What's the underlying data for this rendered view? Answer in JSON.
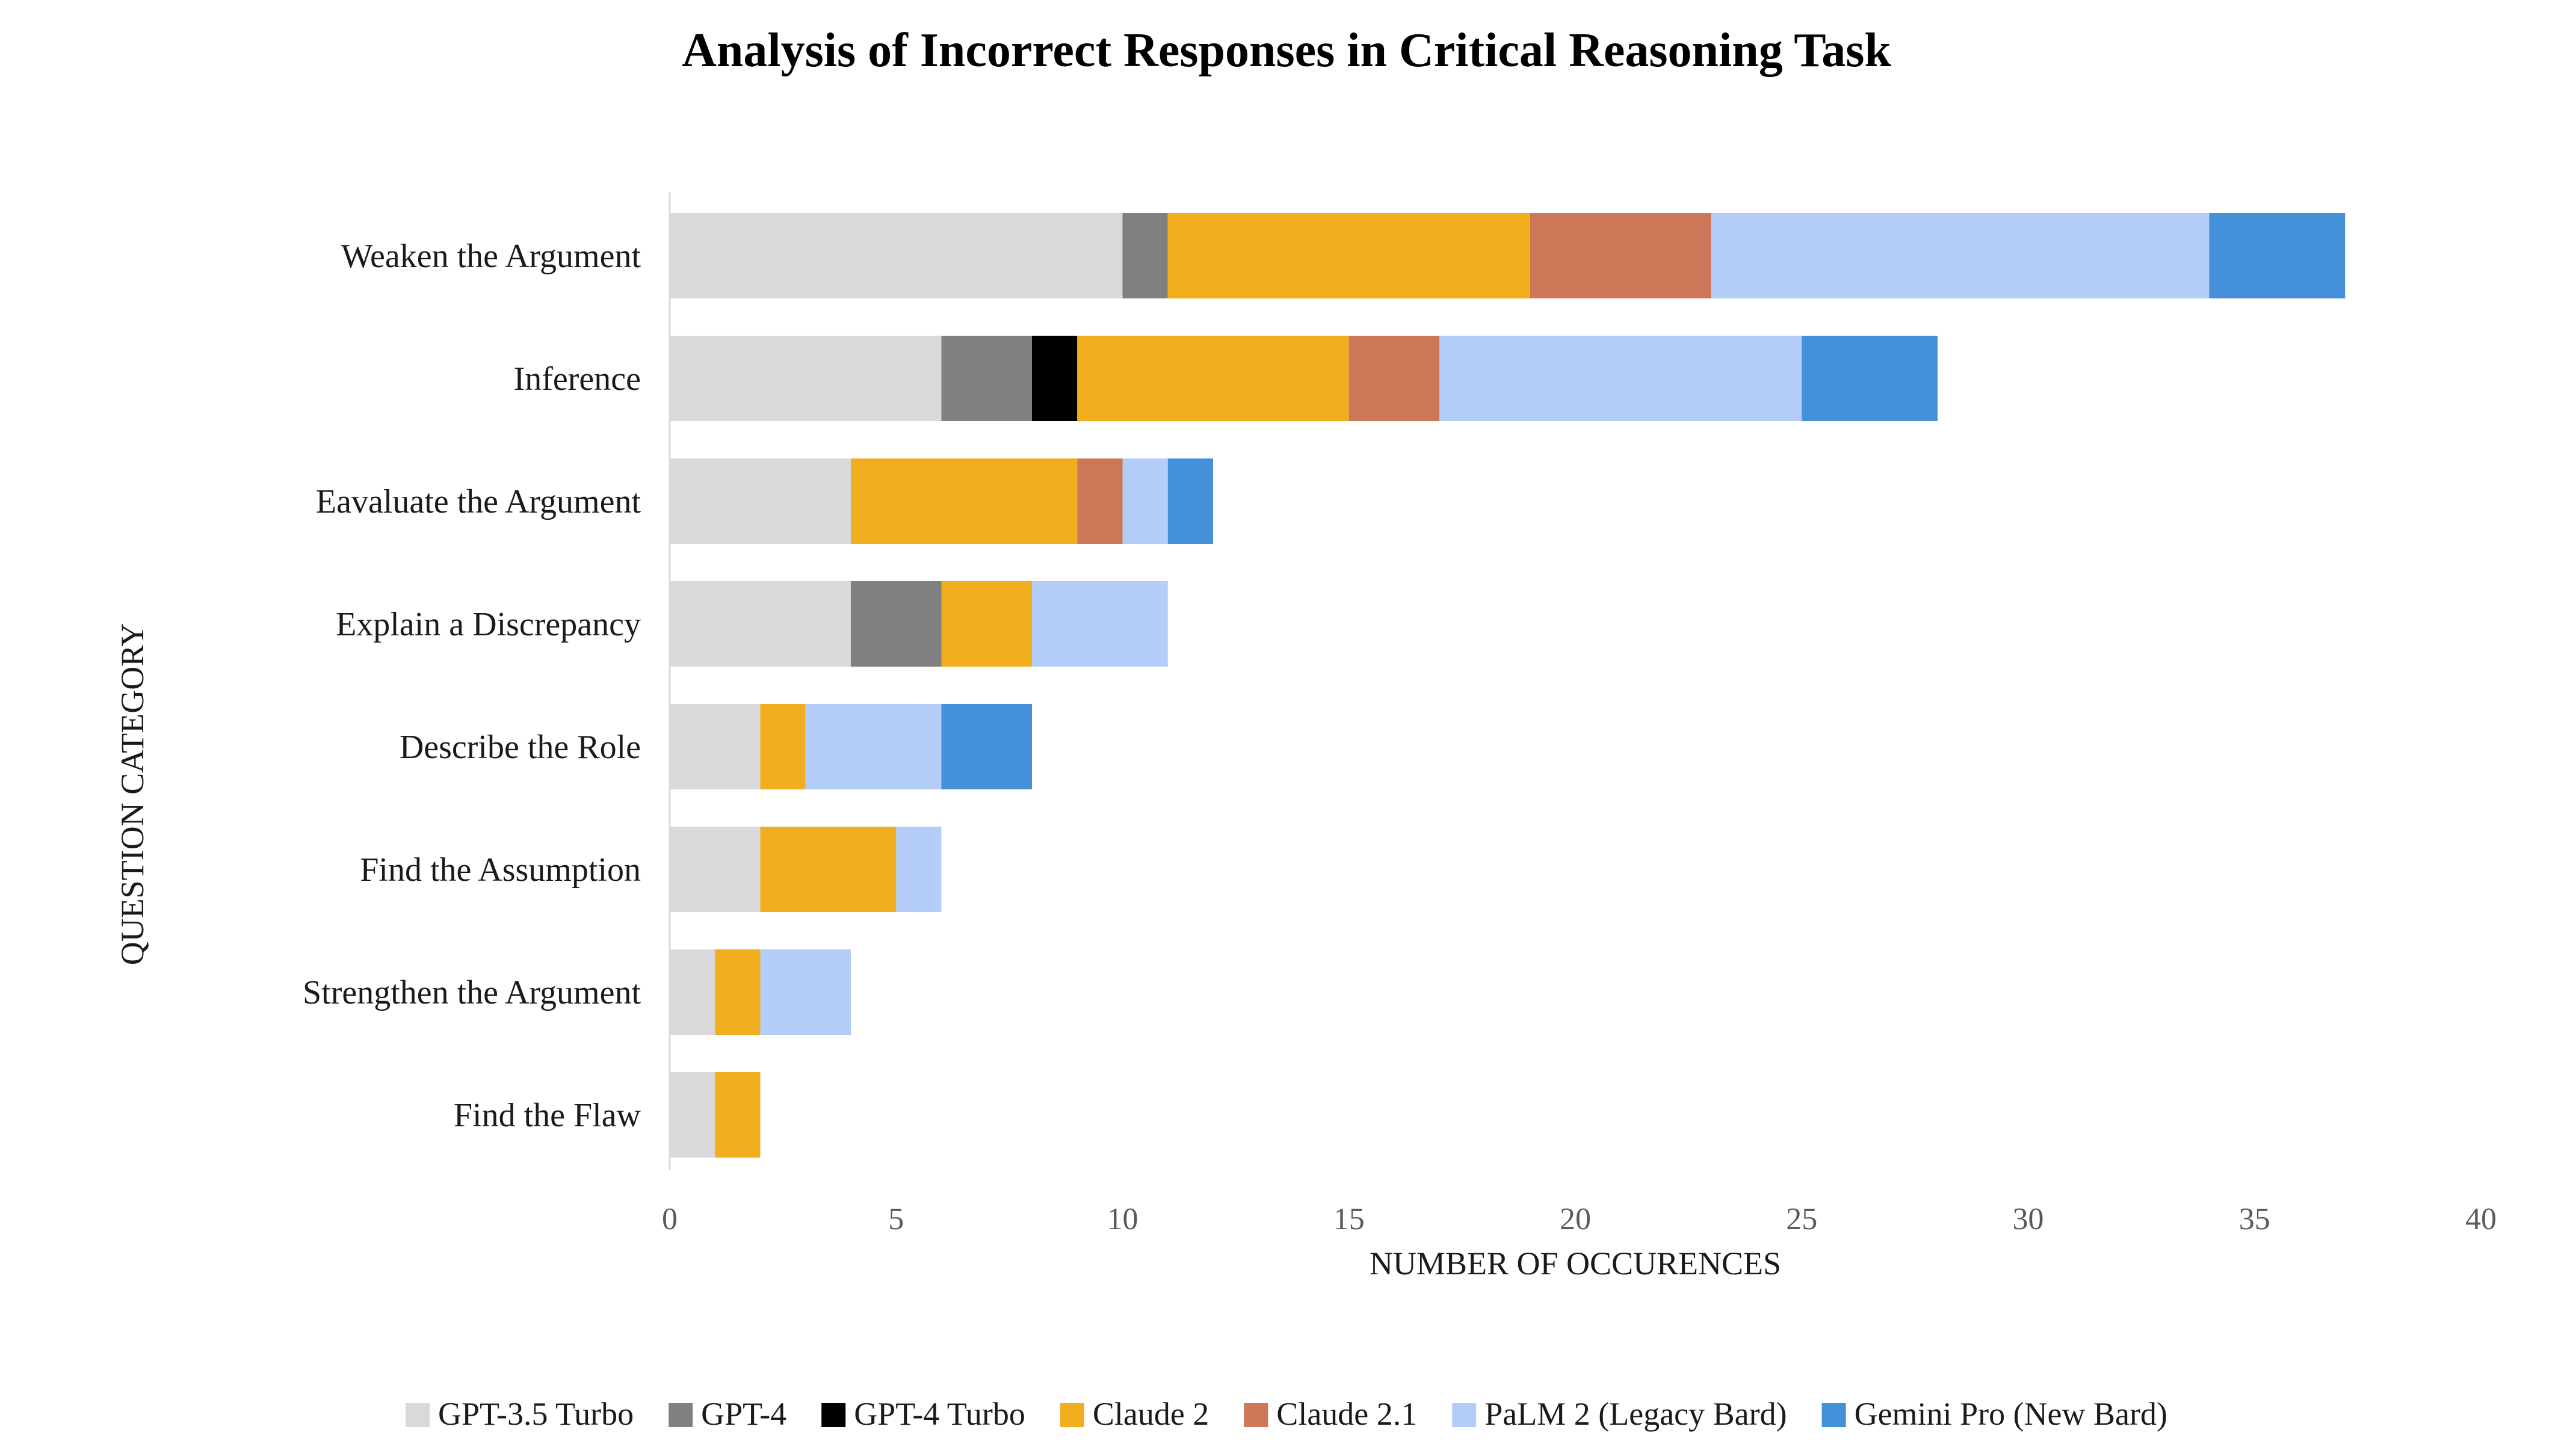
{
  "chart_data": {
    "type": "bar",
    "orientation": "horizontal",
    "stacked": true,
    "title": "Analysis of Incorrect Responses in Critical Reasoning Task",
    "xlabel": "NUMBER OF OCCURENCES",
    "ylabel": "QUESTION CATEGORY",
    "xlim": [
      0,
      40
    ],
    "xticks": [
      0,
      5,
      10,
      15,
      20,
      25,
      30,
      35,
      40
    ],
    "grid": false,
    "legend_position": "bottom",
    "categories": [
      "Weaken the Argument",
      "Inference",
      "Eavaluate the Argument",
      "Explain a Discrepancy",
      "Describe the Role",
      "Find the Assumption",
      "Strengthen the Argument",
      "Find the Flaw"
    ],
    "series": [
      {
        "name": "GPT-3.5 Turbo",
        "color": "#d9d9d9",
        "values": [
          10,
          6,
          4,
          4,
          2,
          2,
          1,
          1
        ]
      },
      {
        "name": "GPT-4",
        "color": "#808080",
        "values": [
          1,
          2,
          0,
          2,
          0,
          0,
          0,
          0
        ]
      },
      {
        "name": "GPT-4 Turbo",
        "color": "#000000",
        "values": [
          0,
          1,
          0,
          0,
          0,
          0,
          0,
          0
        ]
      },
      {
        "name": "Claude 2",
        "color": "#f0ae1e",
        "values": [
          8,
          6,
          5,
          2,
          1,
          3,
          1,
          1
        ]
      },
      {
        "name": "Claude 2.1",
        "color": "#cd7759",
        "values": [
          4,
          2,
          1,
          0,
          0,
          0,
          0,
          0
        ]
      },
      {
        "name": "PaLM 2 (Legacy Bard)",
        "color": "#b4cdf8",
        "values": [
          11,
          8,
          1,
          3,
          3,
          1,
          2,
          0
        ]
      },
      {
        "name": "Gemini Pro (New Bard)",
        "color": "#4590da",
        "values": [
          3,
          3,
          1,
          0,
          2,
          0,
          0,
          0
        ]
      }
    ]
  }
}
